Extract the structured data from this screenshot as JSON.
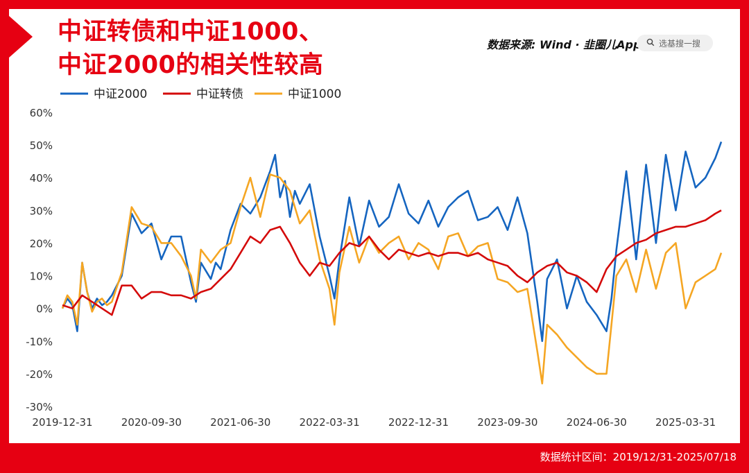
{
  "header": {
    "title_line1": "中证转债和中证1000、",
    "title_line2": "中证2000的相关性较高",
    "source_prefix": "数据来源: Wind · ",
    "source_brand": "韭圈儿App",
    "search_placeholder": "选基搜一搜"
  },
  "footer": {
    "range_text": "数据统计区间：2019/12/31-2025/07/18"
  },
  "chart_data": {
    "type": "line",
    "title": "中证转债和中证1000、中证2000的相关性较高",
    "ylim": [
      -30,
      60
    ],
    "y_ticks": [
      -30,
      -20,
      -10,
      0,
      10,
      20,
      30,
      40,
      50,
      60
    ],
    "y_tick_labels": [
      "-30%",
      "-20%",
      "-10%",
      "0%",
      "10%",
      "20%",
      "30%",
      "40%",
      "50%",
      "60%"
    ],
    "x_tick_labels": [
      "2019-12-31",
      "2020-09-30",
      "2021-06-30",
      "2022-03-31",
      "2022-12-31",
      "2023-09-30",
      "2024-06-30",
      "2025-03-31"
    ],
    "x_tick_positions": [
      0,
      9,
      18,
      27,
      36,
      45,
      54,
      63
    ],
    "x_max": 66.6,
    "legend_position": "top-left",
    "series": [
      {
        "name": "中证2000",
        "color": "#1565c0",
        "x": [
          0,
          0.5,
          1,
          1.5,
          2,
          2.5,
          3,
          3.5,
          4,
          4.5,
          5,
          6,
          7,
          8,
          9,
          10,
          11,
          12,
          13,
          13.5,
          14,
          15,
          15.5,
          16,
          17,
          18,
          19,
          20,
          21,
          21.5,
          22,
          22.5,
          23,
          23.5,
          24,
          25,
          26,
          27,
          27.5,
          28,
          29,
          30,
          31,
          32,
          33,
          34,
          35,
          36,
          37,
          38,
          39,
          40,
          41,
          42,
          43,
          44,
          45,
          46,
          47,
          48,
          48.5,
          49,
          50,
          51,
          52,
          53,
          54,
          55,
          55.5,
          56,
          57,
          58,
          59,
          60,
          61,
          62,
          63,
          64,
          65,
          66,
          66.6
        ],
        "values": [
          0,
          3,
          1,
          -7,
          14,
          5,
          0,
          3,
          1,
          2,
          4,
          10,
          29,
          23,
          26,
          15,
          22,
          22,
          8,
          2,
          14,
          9,
          14,
          12,
          24,
          32,
          29,
          34,
          42,
          47,
          34,
          39,
          28,
          36,
          32,
          38,
          22,
          10,
          3,
          15,
          34,
          19,
          33,
          25,
          28,
          38,
          29,
          26,
          33,
          25,
          31,
          34,
          36,
          27,
          28,
          31,
          24,
          34,
          23,
          2,
          -10,
          9,
          15,
          0,
          10,
          2,
          -2,
          -7,
          3,
          18,
          42,
          15,
          44,
          20,
          47,
          30,
          48,
          37,
          40,
          46,
          51
        ]
      },
      {
        "name": "中证转债",
        "color": "#d40a0a",
        "x": [
          0,
          1,
          2,
          3,
          4,
          5,
          6,
          7,
          8,
          9,
          10,
          11,
          12,
          13,
          14,
          15,
          16,
          17,
          18,
          19,
          20,
          21,
          22,
          23,
          24,
          25,
          26,
          27,
          28,
          29,
          30,
          31,
          32,
          33,
          34,
          35,
          36,
          37,
          38,
          39,
          40,
          41,
          42,
          43,
          44,
          45,
          46,
          47,
          48,
          49,
          50,
          51,
          52,
          53,
          54,
          55,
          56,
          57,
          58,
          59,
          60,
          61,
          62,
          63,
          64,
          65,
          66,
          66.6
        ],
        "values": [
          1,
          0,
          4,
          2,
          0,
          -2,
          7,
          7,
          3,
          5,
          5,
          4,
          4,
          3,
          5,
          6,
          9,
          12,
          17,
          22,
          20,
          24,
          25,
          20,
          14,
          10,
          14,
          13,
          17,
          20,
          19,
          22,
          18,
          15,
          18,
          17,
          16,
          17,
          16,
          17,
          17,
          16,
          17,
          15,
          14,
          13,
          10,
          8,
          11,
          13,
          14,
          11,
          10,
          8,
          5,
          12,
          16,
          18,
          20,
          21,
          23,
          24,
          25,
          25,
          26,
          27,
          29,
          30
        ]
      },
      {
        "name": "中证1000",
        "color": "#f5a623",
        "x": [
          0,
          0.5,
          1,
          1.5,
          2,
          2.5,
          3,
          3.5,
          4,
          4.5,
          5,
          6,
          7,
          8,
          9,
          10,
          11,
          12,
          13,
          13.5,
          14,
          15,
          16,
          17,
          18,
          19,
          20,
          21,
          22,
          23,
          24,
          25,
          26,
          27,
          27.5,
          28,
          29,
          30,
          31,
          32,
          33,
          34,
          35,
          36,
          37,
          38,
          39,
          40,
          41,
          42,
          43,
          44,
          45,
          46,
          47,
          48,
          48.5,
          49,
          50,
          51,
          52,
          53,
          54,
          55,
          56,
          57,
          58,
          59,
          60,
          61,
          62,
          63,
          64,
          65,
          66,
          66.6
        ],
        "values": [
          0,
          4,
          2,
          -5,
          14,
          5,
          -1,
          2,
          3,
          1,
          2,
          11,
          31,
          26,
          25,
          20,
          20,
          16,
          10,
          3,
          18,
          14,
          18,
          20,
          31,
          40,
          28,
          41,
          40,
          36,
          26,
          30,
          15,
          6,
          -5,
          11,
          25,
          14,
          22,
          17,
          20,
          22,
          15,
          20,
          18,
          12,
          22,
          23,
          16,
          19,
          20,
          9,
          8,
          5,
          6,
          -13,
          -23,
          -5,
          -8,
          -12,
          -15,
          -18,
          -20,
          -20,
          10,
          15,
          5,
          18,
          6,
          17,
          20,
          0,
          8,
          10,
          12,
          17
        ]
      }
    ]
  }
}
